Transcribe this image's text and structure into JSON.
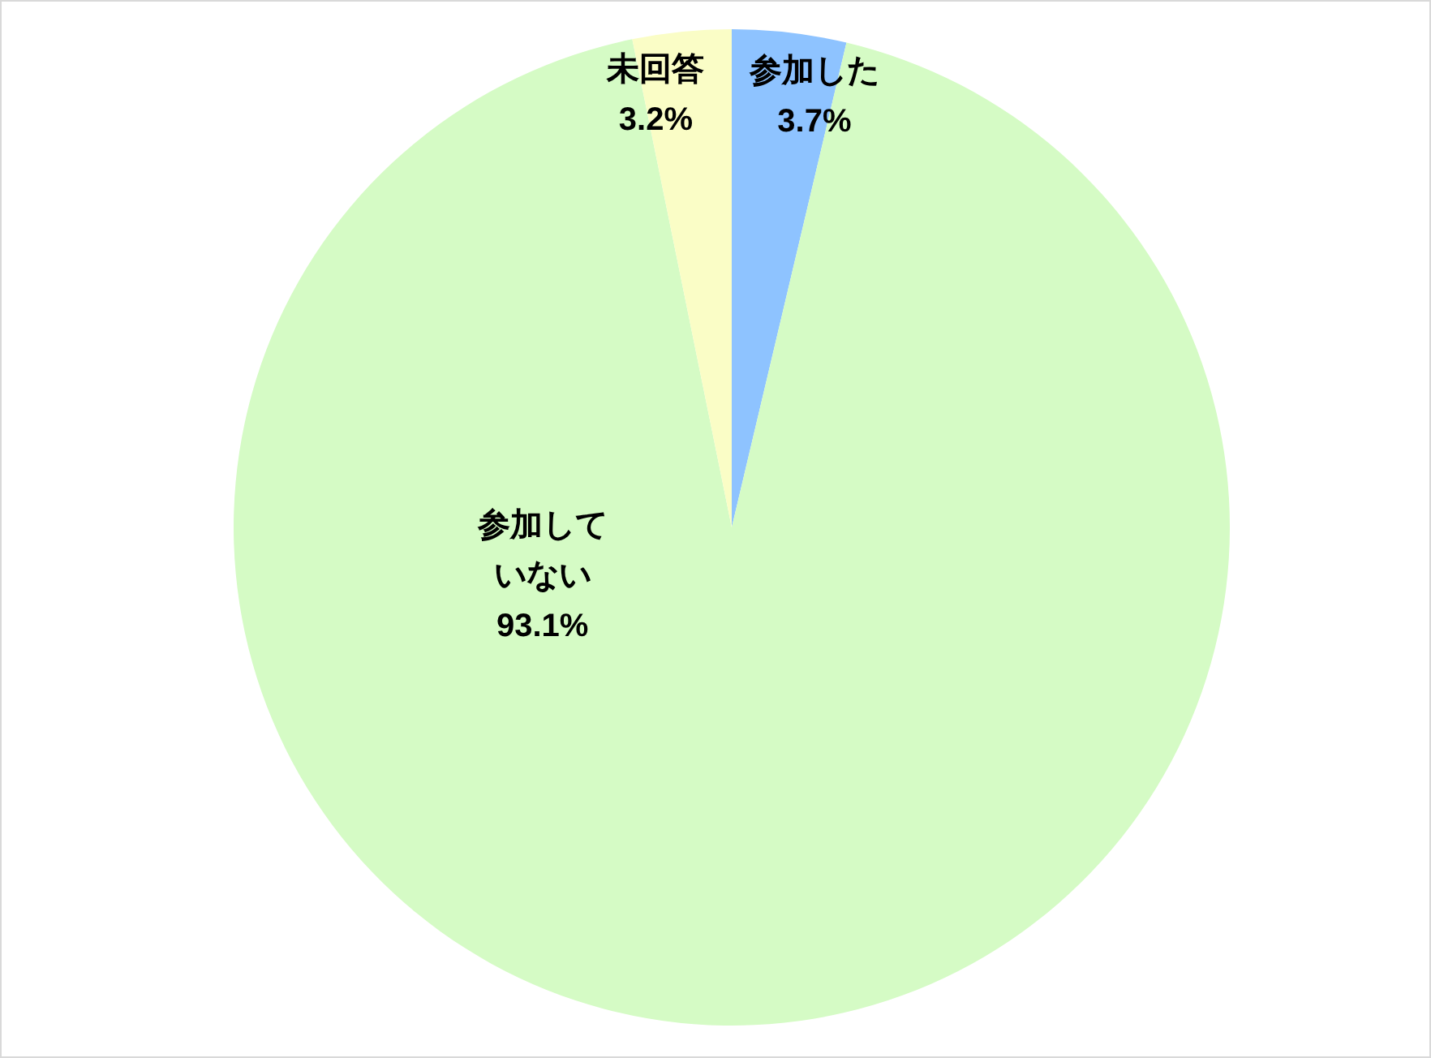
{
  "chart_data": {
    "type": "pie",
    "categories": [
      "参加した",
      "参加していない",
      "未回答"
    ],
    "values": [
      3.7,
      93.1,
      3.2
    ],
    "colors": [
      "#8ec3ff",
      "#d5fbc5",
      "#fafdc6"
    ],
    "value_labels": [
      "3.7%",
      "93.1%",
      "3.2%"
    ]
  }
}
